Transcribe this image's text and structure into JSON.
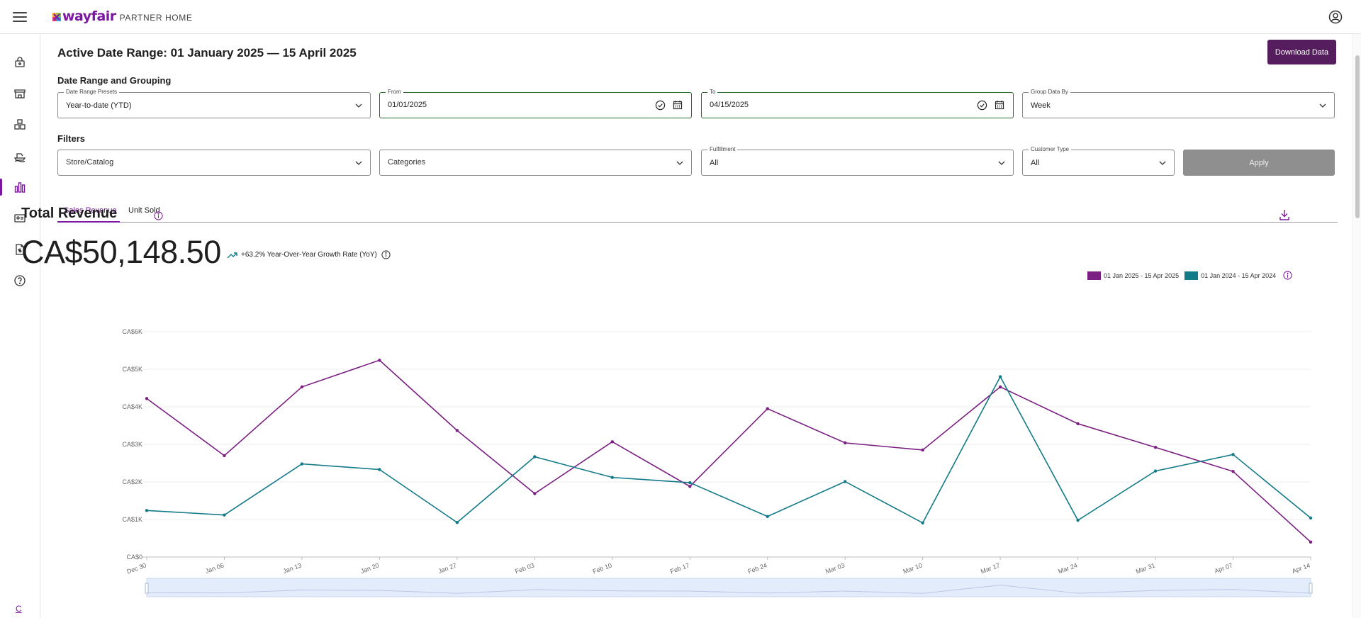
{
  "topbar": {
    "logo_word": "wayfair",
    "logo_sub": "PARTNER HOME"
  },
  "siderail": {
    "items": [
      "lock-bag-icon",
      "storefront-icon",
      "boxes-icon",
      "ship-icon",
      "bar-chart-icon",
      "id-card-icon",
      "document-dollar-icon",
      "help-circle-icon"
    ],
    "active_index": 4,
    "footer": "C"
  },
  "page": {
    "title": "Active Date Range: 01 January 2025 — 15 April 2025",
    "download_label": "Download Data"
  },
  "date_grouping": {
    "heading": "Date Range and Grouping",
    "preset_label": "Date Range Presets",
    "preset_value": "Year-to-date (YTD)",
    "from_label": "From",
    "from_value": "01/01/2025",
    "to_label": "To",
    "to_value": "04/15/2025",
    "group_label": "Group Data By",
    "group_value": "Week"
  },
  "filters": {
    "heading": "Filters",
    "store_placeholder": "Store/Catalog",
    "categories_placeholder": "Categories",
    "fulfillment_label": "Fulfillment",
    "fulfillment_value": "All",
    "customer_label": "Customer Type",
    "customer_value": "All",
    "apply_label": "Apply"
  },
  "tabs": [
    {
      "label": "Sales Revenue",
      "active": true
    },
    {
      "label": "Unit Sold",
      "active": false
    }
  ],
  "revenue": {
    "title": "Total Revenue",
    "value": "CA$50,148.50",
    "yoy_text": "+63.2% Year-Over-Year Growth Rate (YoY)"
  },
  "colors": {
    "brand": "#7b189f",
    "primary_button": "#561d5e",
    "series_current": "#7b1f82",
    "series_previous": "#137a88"
  },
  "chart_data": {
    "type": "line",
    "categories": [
      "Dec 30",
      "Jan 06",
      "Jan 13",
      "Jan 20",
      "Jan 27",
      "Feb 03",
      "Feb 10",
      "Feb 17",
      "Feb 24",
      "Mar 03",
      "Mar 10",
      "Mar 17",
      "Mar 24",
      "Mar 31",
      "Apr 07",
      "Apr 14"
    ],
    "y_ticks": [
      "CA$0",
      "CA$1K",
      "CA$2K",
      "CA$3K",
      "CA$4K",
      "CA$5K",
      "CA$6K"
    ],
    "ylim": [
      0,
      6000
    ],
    "grid": true,
    "legend_position": "top-right",
    "series": [
      {
        "name": "01 Jan 2025 - 15 Apr 2025",
        "color": "#7b1f82",
        "values": [
          4220,
          2700,
          4530,
          5240,
          3370,
          1690,
          3070,
          1880,
          3950,
          3040,
          2850,
          4530,
          3550,
          2920,
          2280,
          400
        ]
      },
      {
        "name": "01 Jan 2024 - 15 Apr 2024",
        "color": "#137a88",
        "values": [
          1240,
          1120,
          2480,
          2330,
          920,
          2670,
          2120,
          1980,
          1080,
          2010,
          910,
          4800,
          980,
          2290,
          2730,
          1040
        ]
      }
    ]
  }
}
